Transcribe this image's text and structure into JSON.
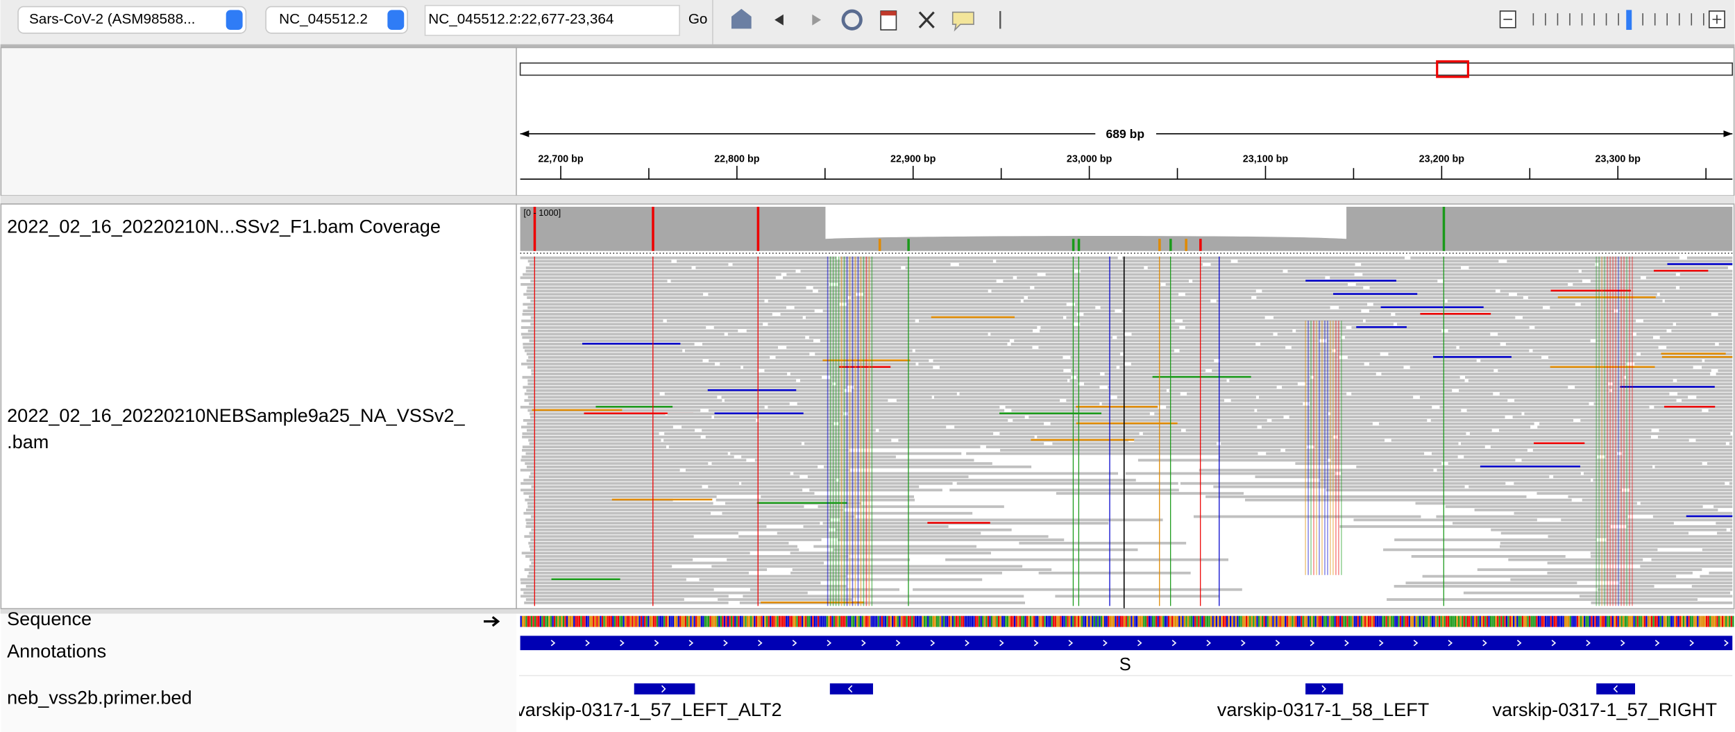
{
  "toolbar": {
    "genome": "Sars-CoV-2 (ASM98588...",
    "chromosome": "NC_045512.2",
    "locus": "NC_045512.2:22,677-23,364",
    "go": "Go"
  },
  "ruler": {
    "span_label": "689 bp",
    "xlim": [
      22677,
      23365
    ],
    "ticks": [
      {
        "value": 22700,
        "label": "22,700 bp"
      },
      {
        "value": 22800,
        "label": "22,800 bp"
      },
      {
        "value": 22900,
        "label": "22,900 bp"
      },
      {
        "value": 23000,
        "label": "23,000 bp"
      },
      {
        "value": 23100,
        "label": "23,100 bp"
      },
      {
        "value": 23200,
        "label": "23,200 bp"
      },
      {
        "value": 23300,
        "label": "23,300 bp"
      }
    ]
  },
  "tracks": {
    "coverage": {
      "name": "2022_02_16_20220210N...SSv2_F1.bam Coverage",
      "range_label": "[0 - 1000]"
    },
    "alignment": {
      "name_lines": [
        "2022_02_16_20220210NEBSample9a25_NA_VSSv2_",
        ".bam"
      ]
    },
    "sequence": {
      "name": "Sequence"
    },
    "annotations": {
      "name": "Annotations",
      "gene": "S"
    },
    "primers": {
      "name": "neb_vss2b.primer.bed",
      "labels": [
        "varskip-0317-1_57_LEFT_ALT2",
        "varskip-0317-1_58_LEFT",
        "varskip-0317-1_57_RIGHT"
      ]
    }
  }
}
